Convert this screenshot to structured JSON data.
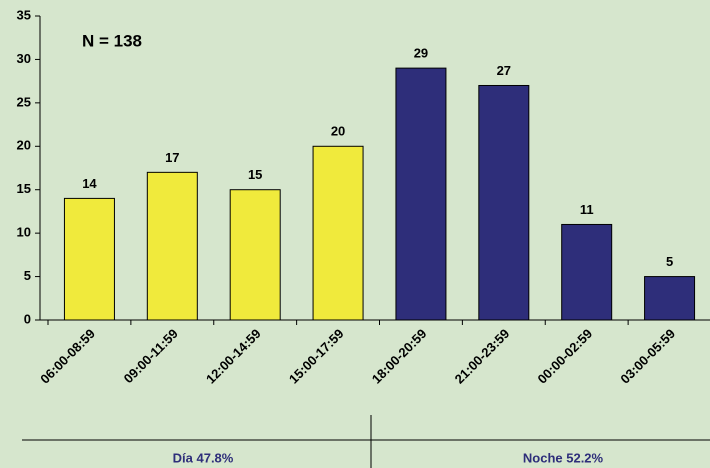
{
  "chart_data": {
    "type": "bar",
    "annotation": "N = 138",
    "categories": [
      "06:00-08:59",
      "09:00-11:59",
      "12:00-14:59",
      "15:00-17:59",
      "18:00-20:59",
      "21:00-23:59",
      "00:00-02:59",
      "03:00-05:59"
    ],
    "values": [
      14,
      17,
      15,
      20,
      29,
      27,
      11,
      5
    ],
    "colors": [
      "#f0ea3c",
      "#f0ea3c",
      "#f0ea3c",
      "#f0ea3c",
      "#2e2e7a",
      "#2e2e7a",
      "#2e2e7a",
      "#2e2e7a"
    ],
    "ylim": [
      0,
      35
    ],
    "yticks": [
      0,
      5,
      10,
      15,
      20,
      25,
      30,
      35
    ],
    "groups": [
      "Día 47.8%",
      "Noche 52.2%"
    ]
  }
}
